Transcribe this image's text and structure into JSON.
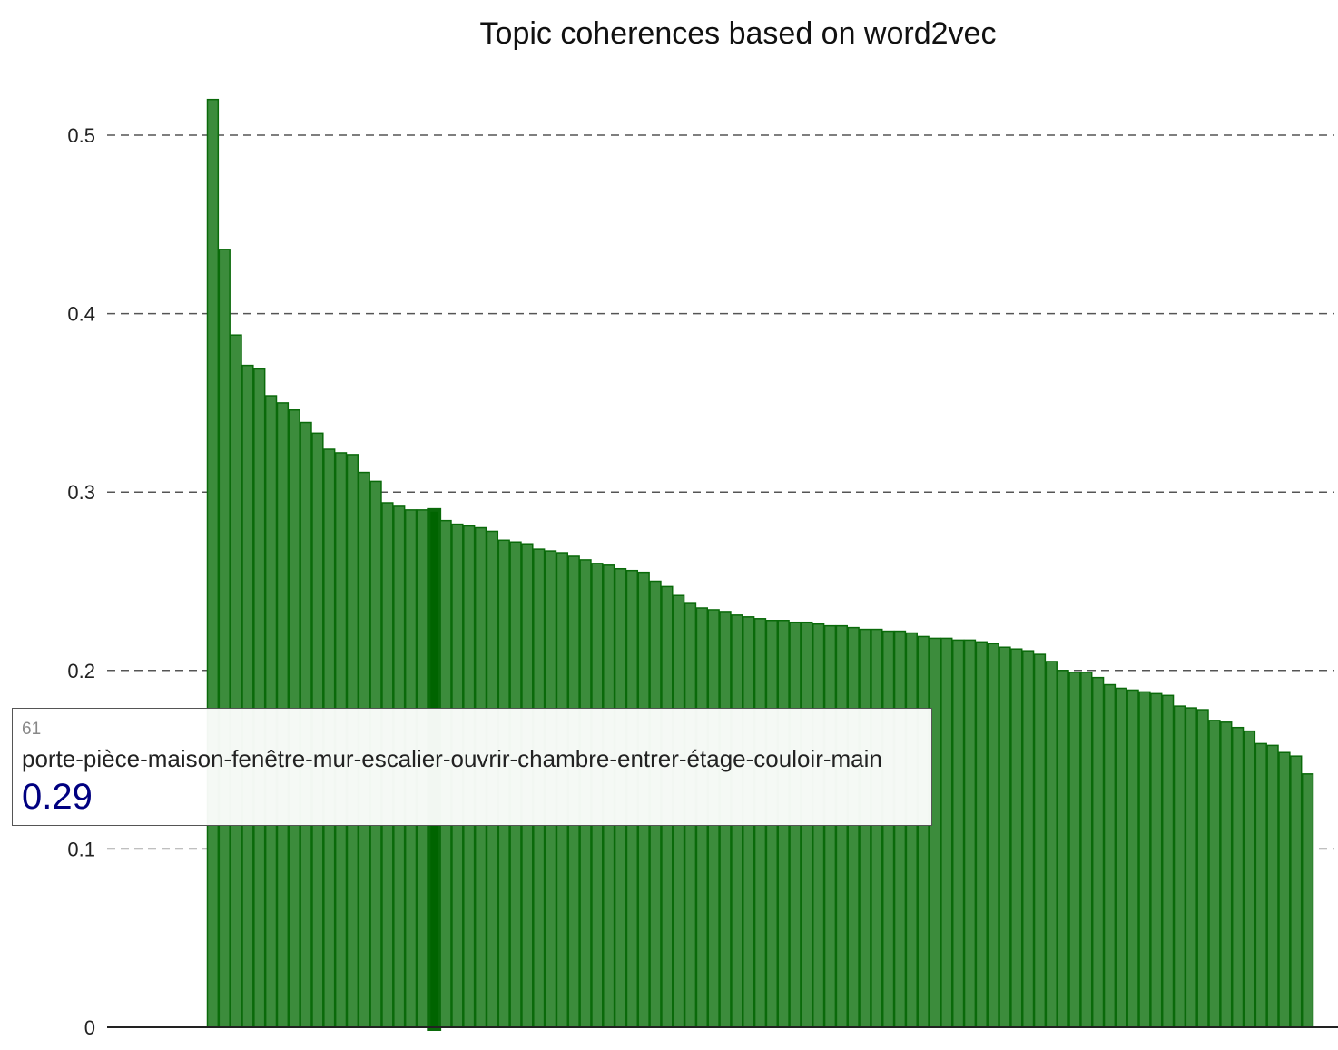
{
  "chart_data": {
    "type": "bar",
    "title": "Topic coherences based on word2vec",
    "xlabel": "",
    "ylabel": "",
    "ylim": [
      0,
      0.52
    ],
    "y_ticks": [
      "0",
      "0.1",
      "0.2",
      "0.3",
      "0.4",
      "0.5"
    ],
    "y_tick_values": [
      0,
      0.1,
      0.2,
      0.3,
      0.4,
      0.5
    ],
    "grid": "horizontal dashed",
    "bar_color": "#3c8c3c",
    "bar_edge_color": "#0a6a0a",
    "highlight_color": "#006400",
    "highlight_index": 19,
    "values": [
      0.52,
      0.436,
      0.388,
      0.371,
      0.369,
      0.354,
      0.35,
      0.346,
      0.339,
      0.333,
      0.324,
      0.322,
      0.321,
      0.311,
      0.306,
      0.294,
      0.292,
      0.29,
      0.29,
      0.29,
      0.284,
      0.282,
      0.281,
      0.28,
      0.278,
      0.273,
      0.272,
      0.271,
      0.268,
      0.267,
      0.266,
      0.264,
      0.262,
      0.26,
      0.259,
      0.257,
      0.256,
      0.255,
      0.25,
      0.247,
      0.242,
      0.238,
      0.235,
      0.234,
      0.233,
      0.231,
      0.23,
      0.229,
      0.228,
      0.228,
      0.227,
      0.227,
      0.226,
      0.225,
      0.225,
      0.224,
      0.223,
      0.223,
      0.222,
      0.222,
      0.221,
      0.219,
      0.218,
      0.218,
      0.217,
      0.217,
      0.216,
      0.215,
      0.213,
      0.212,
      0.211,
      0.209,
      0.205,
      0.2,
      0.199,
      0.199,
      0.196,
      0.192,
      0.19,
      0.189,
      0.188,
      0.187,
      0.186,
      0.18,
      0.179,
      0.178,
      0.172,
      0.171,
      0.168,
      0.166,
      0.159,
      0.158,
      0.154,
      0.152,
      0.142
    ]
  },
  "tooltip": {
    "index": "61",
    "words": "porte-pièce-maison-fenêtre-mur-escalier-ouvrir-chambre-entrer-étage-couloir-main",
    "value": "0.29"
  }
}
